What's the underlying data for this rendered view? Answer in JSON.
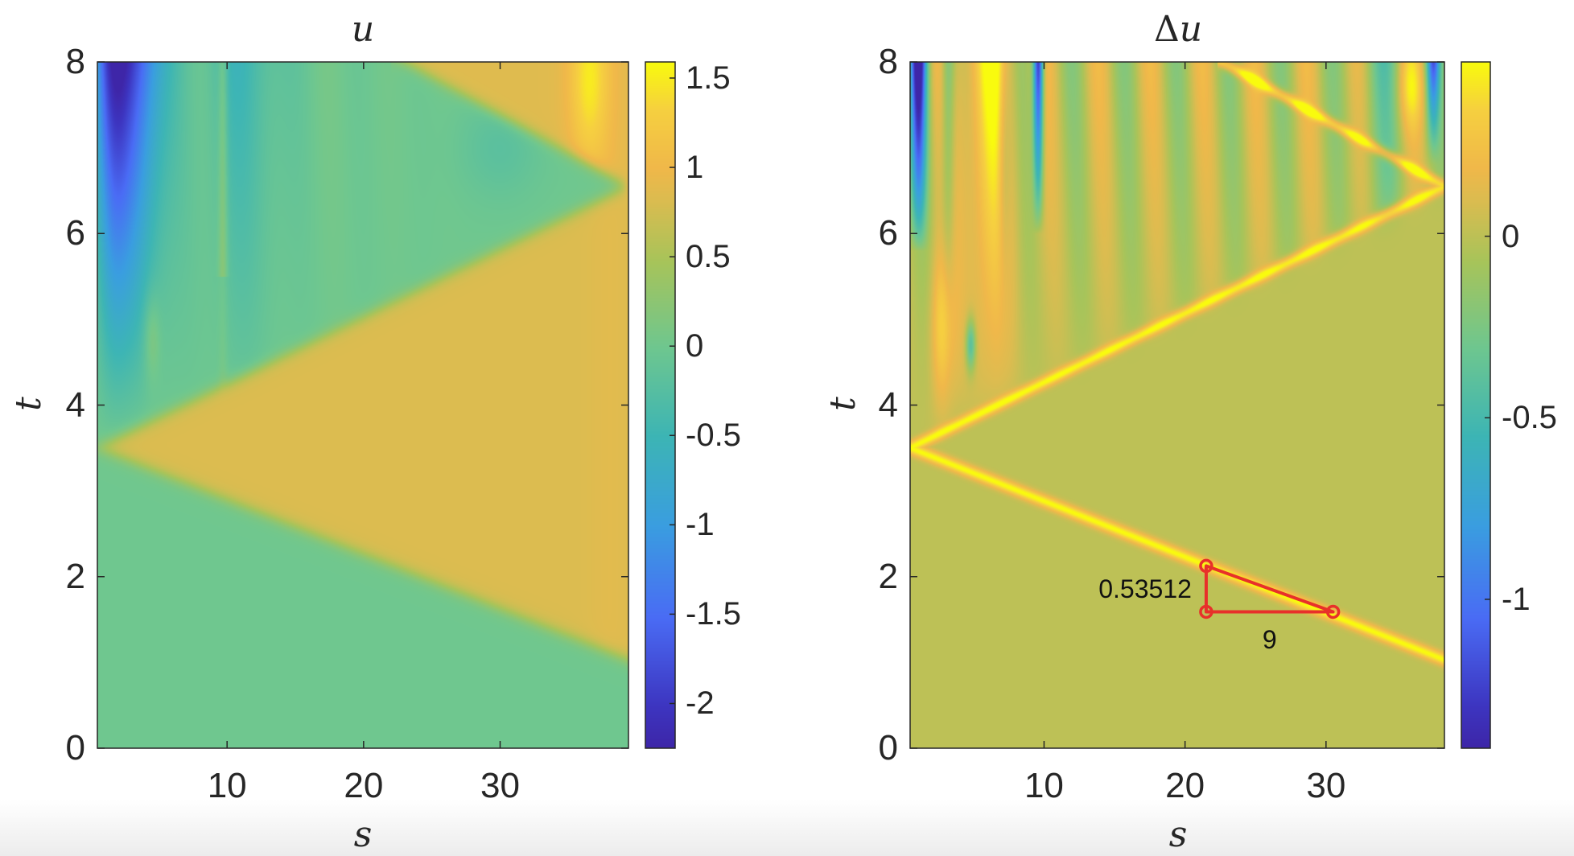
{
  "chart_data": [
    {
      "type": "heatmap",
      "title": "u",
      "xlabel": "s",
      "ylabel": "t",
      "xlim": [
        0.5,
        39.4
      ],
      "ylim": [
        0,
        8
      ],
      "xticks": [
        10,
        20,
        30
      ],
      "yticks": [
        0,
        2,
        4,
        6,
        8
      ],
      "colormap": "parula",
      "clim": [
        -2.25,
        1.59
      ],
      "colorbar_ticks": [
        -2,
        -1.5,
        -1,
        -0.5,
        0,
        0.5,
        1,
        1.5
      ],
      "fronts": [
        [
          [
            0.5,
            3.5
          ],
          [
            39.4,
            1.03
          ]
        ],
        [
          [
            0.5,
            3.5
          ],
          [
            39.4,
            6.55
          ]
        ],
        [
          [
            23,
            8
          ],
          [
            39.4,
            6.55
          ]
        ]
      ],
      "region_values": {
        "behind_front": 0.82,
        "ahead_of_front": 0
      }
    },
    {
      "type": "heatmap",
      "title": "Δu",
      "xlabel": "s",
      "ylabel": "t",
      "xlim": [
        0.5,
        38.4
      ],
      "ylim": [
        0,
        8
      ],
      "xticks": [
        10,
        20,
        30
      ],
      "yticks": [
        0,
        2,
        4,
        6,
        8
      ],
      "colormap": "parula",
      "clim": [
        -1.41,
        0.48
      ],
      "colorbar_ticks": [
        -1,
        -0.5,
        0
      ],
      "fronts": [
        [
          [
            0.5,
            3.5
          ],
          [
            38.4,
            1.03
          ]
        ],
        [
          [
            0.5,
            3.5
          ],
          [
            38.4,
            6.55
          ]
        ],
        [
          [
            22.6,
            8
          ],
          [
            38.4,
            6.55
          ]
        ]
      ],
      "annotation": {
        "color": "#e8302a",
        "points": [
          [
            21.5,
            2.125
          ],
          [
            21.5,
            1.59
          ],
          [
            30.5,
            1.59
          ]
        ],
        "dy_label": "0.53512",
        "dx_label": "9"
      }
    }
  ]
}
